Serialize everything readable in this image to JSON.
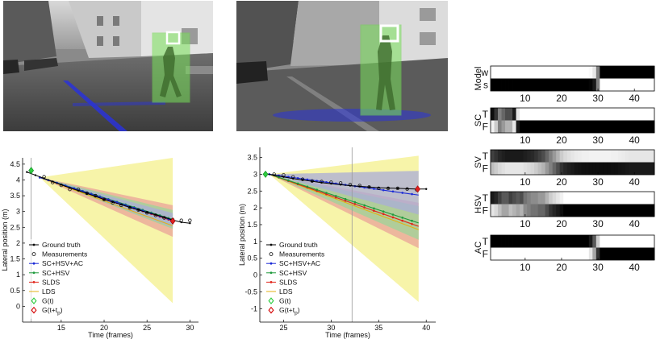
{
  "photos": [
    {
      "name": "scene-photo-left"
    },
    {
      "name": "scene-photo-right"
    }
  ],
  "legend": {
    "items": [
      {
        "label": "Ground truth",
        "color": "#000000",
        "marker": "dot"
      },
      {
        "label": "Measurements",
        "color": "#000000",
        "marker": "circle"
      },
      {
        "label": "SC+HSV+AC",
        "color": "#1c2bd6",
        "marker": "dot"
      },
      {
        "label": "SC+HSV",
        "color": "#1e9a3c",
        "marker": "dot"
      },
      {
        "label": "SLDS",
        "color": "#e0251b",
        "marker": "dot"
      },
      {
        "label": "LDS",
        "color": "#e3b214",
        "marker": "line"
      },
      {
        "label": "G(t)",
        "color": "#2ecc40",
        "marker": "diamond"
      },
      {
        "label": "G(t+t",
        "sub": "p",
        "suffix": ")",
        "color": "#d40000",
        "marker": "diamond-open"
      }
    ]
  },
  "chart_data": [
    {
      "type": "line",
      "xlabel": "Time (frames)",
      "ylabel": "Lateral position (m)",
      "xlim": [
        10.5,
        31
      ],
      "ylim": [
        -0.5,
        4.7
      ],
      "xticks": [
        15,
        20,
        25,
        30
      ],
      "yticks": [
        0,
        0.5,
        1,
        1.5,
        2,
        2.5,
        3,
        3.5,
        4,
        4.5
      ],
      "cursor_x": 11.5,
      "ground_truth": {
        "x": [
          11,
          12,
          13,
          14,
          15,
          16,
          17,
          18,
          19,
          20,
          21,
          22,
          23,
          24,
          25,
          26,
          27,
          28,
          29,
          30
        ],
        "y": [
          4.25,
          4.15,
          4.05,
          3.95,
          3.85,
          3.75,
          3.66,
          3.57,
          3.48,
          3.38,
          3.3,
          3.22,
          3.13,
          3.05,
          2.97,
          2.9,
          2.82,
          2.73,
          2.66,
          2.63
        ]
      },
      "measurements": {
        "x": [
          13,
          14,
          15,
          16,
          17,
          18,
          19,
          20,
          21,
          22,
          23,
          24,
          25,
          26,
          27,
          28,
          29,
          30
        ],
        "y": [
          4.1,
          3.92,
          3.83,
          3.7,
          3.7,
          3.58,
          3.5,
          3.38,
          3.28,
          3.2,
          3.12,
          3.05,
          2.96,
          2.88,
          2.8,
          2.74,
          2.72,
          2.72
        ]
      },
      "G_t": {
        "x": 11.5,
        "y": 4.3
      },
      "G_tp": {
        "x": 28,
        "y": 2.7
      },
      "forecast_start": 12.5,
      "forecast_end": 28,
      "forecasts": [
        {
          "name": "LDS",
          "color": "#e3b214",
          "start": 4.08,
          "end": 2.55,
          "band_lo": 0.1,
          "band_hi": 4.7,
          "fill": "#f6f29a"
        },
        {
          "name": "SLDS",
          "color": "#e0251b",
          "start": 4.08,
          "end": 2.7,
          "band_lo": 2.2,
          "band_hi": 3.2,
          "fill": "#e9a39a"
        },
        {
          "name": "SC+HSV",
          "color": "#1e9a3c",
          "start": 4.08,
          "end": 2.75,
          "band_lo": 2.45,
          "band_hi": 3.05,
          "fill": "#9bd49a"
        },
        {
          "name": "SC+HSV+AC",
          "color": "#1c2bd6",
          "start": 4.08,
          "end": 2.72,
          "band_lo": 2.5,
          "band_hi": 2.95,
          "fill": "#a9acd8"
        }
      ]
    },
    {
      "type": "line",
      "xlabel": "Time (frames)",
      "ylabel": "Lateral position (m)",
      "xlim": [
        22.5,
        41
      ],
      "ylim": [
        -1.4,
        3.8
      ],
      "xticks": [
        25,
        30,
        35,
        40
      ],
      "yticks": [
        -1,
        -0.5,
        0,
        0.5,
        1,
        1.5,
        2,
        2.5,
        3,
        3.5
      ],
      "cursor_x": 32.2,
      "ground_truth": {
        "x": [
          23,
          24,
          25,
          26,
          27,
          28,
          29,
          30,
          31,
          32,
          33,
          34,
          35,
          36,
          37,
          38,
          39,
          40
        ],
        "y": [
          3.02,
          2.97,
          2.92,
          2.87,
          2.83,
          2.79,
          2.75,
          2.72,
          2.69,
          2.66,
          2.64,
          2.62,
          2.6,
          2.59,
          2.58,
          2.57,
          2.56,
          2.56
        ]
      },
      "measurements": {
        "x": [
          24,
          25,
          26,
          27,
          28,
          29,
          30,
          31,
          32,
          33,
          34,
          35,
          36,
          37,
          38,
          39
        ],
        "y": [
          3.0,
          2.98,
          2.92,
          2.85,
          2.8,
          2.78,
          2.76,
          2.74,
          2.69,
          2.66,
          2.62,
          2.58,
          2.58,
          2.58,
          2.56,
          2.54
        ]
      },
      "G_t": {
        "x": 23.1,
        "y": 3.0
      },
      "G_tp": {
        "x": 39.1,
        "y": 2.56
      },
      "forecast_start": 23.5,
      "forecast_end": 39.2,
      "forecasts": [
        {
          "name": "LDS",
          "color": "#e3b214",
          "start": 3.0,
          "end": 1.35,
          "band_lo": -0.8,
          "band_hi": 3.55,
          "fill": "#f6f29a"
        },
        {
          "name": "SLDS",
          "color": "#e0251b",
          "start": 3.0,
          "end": 1.45,
          "band_lo": 0.8,
          "band_hi": 2.15,
          "fill": "#e9a39a"
        },
        {
          "name": "SC+HSV",
          "color": "#1e9a3c",
          "start": 3.0,
          "end": 1.55,
          "band_lo": 1.05,
          "band_hi": 2.05,
          "fill": "#9bd49a"
        },
        {
          "name": "SC+HSV+AC",
          "color": "#1c2bd6",
          "start": 3.0,
          "end": 2.38,
          "band_lo": 1.8,
          "band_hi": 3.1,
          "fill": "#a9acd8"
        }
      ]
    },
    {
      "type": "heatmap",
      "x_range": [
        1,
        45
      ],
      "xticks": [
        10,
        20,
        30,
        40
      ],
      "panels": [
        {
          "label": "Model",
          "rows": [
            "w",
            "s"
          ],
          "values": [
            [
              1,
              1,
              1,
              1,
              1,
              1,
              1,
              1,
              1,
              1,
              1,
              1,
              1,
              1,
              1,
              1,
              1,
              1,
              1,
              1,
              1,
              1,
              1,
              1,
              1,
              1,
              1,
              0.98,
              0.9,
              0.5,
              0,
              0,
              0,
              0,
              0,
              0,
              0,
              0,
              0,
              0,
              0,
              0,
              0,
              0,
              0
            ],
            [
              0,
              0,
              0,
              0,
              0,
              0,
              0,
              0,
              0,
              0,
              0,
              0,
              0,
              0,
              0,
              0,
              0,
              0,
              0,
              0,
              0,
              0,
              0,
              0,
              0,
              0,
              0,
              0.02,
              0.1,
              0.5,
              1,
              1,
              1,
              1,
              1,
              1,
              1,
              1,
              1,
              1,
              1,
              1,
              1,
              1,
              1
            ]
          ]
        },
        {
          "label": "SC",
          "rows": [
            "T",
            "F"
          ],
          "values": [
            [
              0.05,
              0.2,
              0.5,
              0.4,
              0.3,
              0.3,
              0.1,
              0.9,
              1,
              1,
              1,
              1,
              1,
              1,
              1,
              1,
              1,
              1,
              1,
              1,
              1,
              1,
              1,
              1,
              1,
              1,
              1,
              1,
              1,
              1,
              1,
              1,
              1,
              1,
              1,
              1,
              1,
              1,
              1,
              1,
              1,
              1,
              1,
              1,
              1
            ],
            [
              0.95,
              0.8,
              0.5,
              0.6,
              0.7,
              0.7,
              0.9,
              0.1,
              0,
              0,
              0,
              0,
              0,
              0,
              0,
              0,
              0,
              0,
              0,
              0,
              0,
              0,
              0,
              0,
              0,
              0,
              0,
              0,
              0,
              0,
              0,
              0,
              0,
              0,
              0,
              0,
              0,
              0,
              0,
              0,
              0,
              0,
              0,
              0,
              0
            ]
          ]
        },
        {
          "label": "SV",
          "rows": [
            "T",
            "F"
          ],
          "values": [
            [
              0.25,
              0.2,
              0.15,
              0.12,
              0.1,
              0.1,
              0.1,
              0.1,
              0.1,
              0.12,
              0.14,
              0.16,
              0.2,
              0.25,
              0.3,
              0.4,
              0.5,
              0.6,
              0.7,
              0.8,
              0.85,
              0.88,
              0.9,
              0.92,
              0.93,
              0.94,
              0.94,
              0.95,
              0.95,
              0.95,
              0.95,
              0.95,
              0.95,
              0.94,
              0.94,
              0.93,
              0.92,
              0.91,
              0.9,
              0.9,
              0.9,
              0.9,
              0.9,
              0.9,
              0.9
            ],
            [
              0.75,
              0.8,
              0.85,
              0.88,
              0.9,
              0.9,
              0.9,
              0.9,
              0.9,
              0.88,
              0.86,
              0.84,
              0.8,
              0.75,
              0.7,
              0.6,
              0.5,
              0.4,
              0.3,
              0.2,
              0.15,
              0.12,
              0.1,
              0.08,
              0.07,
              0.06,
              0.06,
              0.05,
              0.05,
              0.05,
              0.05,
              0.05,
              0.05,
              0.06,
              0.06,
              0.07,
              0.08,
              0.09,
              0.1,
              0.1,
              0.1,
              0.1,
              0.1,
              0.1,
              0.1
            ]
          ]
        },
        {
          "label": "HSV",
          "rows": [
            "T",
            "F"
          ],
          "values": [
            [
              0.1,
              0.15,
              0.25,
              0.35,
              0.35,
              0.25,
              0.3,
              0.35,
              0.3,
              0.45,
              0.5,
              0.55,
              0.55,
              0.6,
              0.6,
              0.7,
              0.8,
              0.85,
              0.9,
              0.95,
              1,
              1,
              1,
              1,
              1,
              1,
              1,
              1,
              1,
              1,
              1,
              1,
              1,
              1,
              1,
              1,
              1,
              1,
              1,
              1,
              1,
              1,
              1,
              1,
              1
            ],
            [
              0.9,
              0.85,
              0.75,
              0.65,
              0.65,
              0.75,
              0.7,
              0.65,
              0.7,
              0.55,
              0.5,
              0.45,
              0.45,
              0.4,
              0.4,
              0.3,
              0.2,
              0.15,
              0.1,
              0.05,
              0,
              0,
              0,
              0,
              0,
              0,
              0,
              0,
              0,
              0,
              0,
              0,
              0,
              0,
              0,
              0,
              0,
              0,
              0,
              0,
              0,
              0,
              0,
              0,
              0
            ]
          ]
        },
        {
          "label": "AC",
          "rows": [
            "T",
            "F"
          ],
          "values": [
            [
              0,
              0,
              0,
              0,
              0,
              0,
              0,
              0,
              0,
              0,
              0,
              0,
              0,
              0,
              0,
              0,
              0,
              0,
              0,
              0,
              0,
              0,
              0,
              0,
              0,
              0,
              0,
              0.1,
              0.35,
              0.8,
              1,
              1,
              1,
              1,
              1,
              1,
              1,
              1,
              1,
              1,
              1,
              1,
              1,
              1,
              1
            ],
            [
              1,
              1,
              1,
              1,
              1,
              1,
              1,
              1,
              1,
              1,
              1,
              1,
              1,
              1,
              1,
              1,
              1,
              1,
              1,
              1,
              1,
              1,
              1,
              1,
              1,
              1,
              1,
              0.9,
              0.65,
              0.2,
              0,
              0,
              0,
              0,
              0,
              0,
              0,
              0,
              0,
              0,
              0,
              0,
              0,
              0,
              0
            ]
          ]
        }
      ]
    }
  ]
}
